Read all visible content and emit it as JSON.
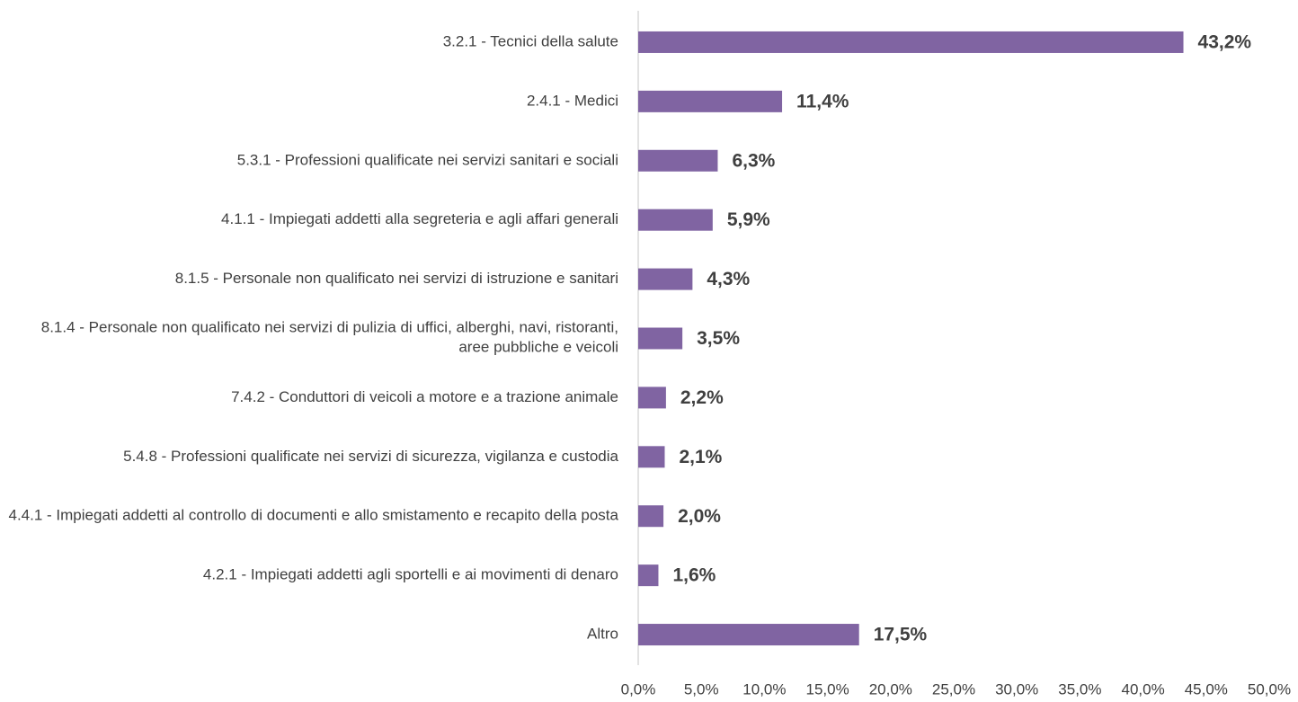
{
  "chart_data": {
    "type": "barh",
    "categories": [
      "3.2.1 - Tecnici della salute",
      "2.4.1 - Medici",
      "5.3.1 - Professioni qualificate nei servizi sanitari e sociali",
      "4.1.1 - Impiegati addetti alla segreteria e agli affari generali",
      "8.1.5 - Personale non qualificato nei servizi di istruzione e sanitari",
      "8.1.4 -  Personale non qualificato nei servizi di pulizia di uffici, alberghi, navi, ristoranti, aree pubbliche e veicoli",
      "7.4.2 - Conduttori di veicoli a motore e a trazione animale",
      "5.4.8 - Professioni qualificate nei servizi di sicurezza, vigilanza e custodia",
      "4.4.1 - Impiegati addetti al controllo di documenti e allo smistamento e recapito della posta",
      "4.2.1 - Impiegati addetti agli sportelli e ai movimenti di denaro",
      "Altro"
    ],
    "values": [
      43.2,
      11.4,
      6.3,
      5.9,
      4.3,
      3.5,
      2.2,
      2.1,
      2.0,
      1.6,
      17.5
    ],
    "value_labels": [
      "43,2%",
      "11,4%",
      "6,3%",
      "5,9%",
      "4,3%",
      "3,5%",
      "2,2%",
      "2,1%",
      "2,0%",
      "1,6%",
      "17,5%"
    ],
    "color": "#8064a2",
    "xlim": [
      0,
      50
    ],
    "xticks": [
      {
        "value": 0,
        "label": "0,0%"
      },
      {
        "value": 5,
        "label": "5,0%"
      },
      {
        "value": 10,
        "label": "10,0%"
      },
      {
        "value": 15,
        "label": "15,0%"
      },
      {
        "value": 20,
        "label": "20,0%"
      },
      {
        "value": 25,
        "label": "25,0%"
      },
      {
        "value": 30,
        "label": "30,0%"
      },
      {
        "value": 35,
        "label": "35,0%"
      },
      {
        "value": 40,
        "label": "40,0%"
      },
      {
        "value": 45,
        "label": "45,0%"
      },
      {
        "value": 50,
        "label": "50,0%"
      }
    ]
  }
}
